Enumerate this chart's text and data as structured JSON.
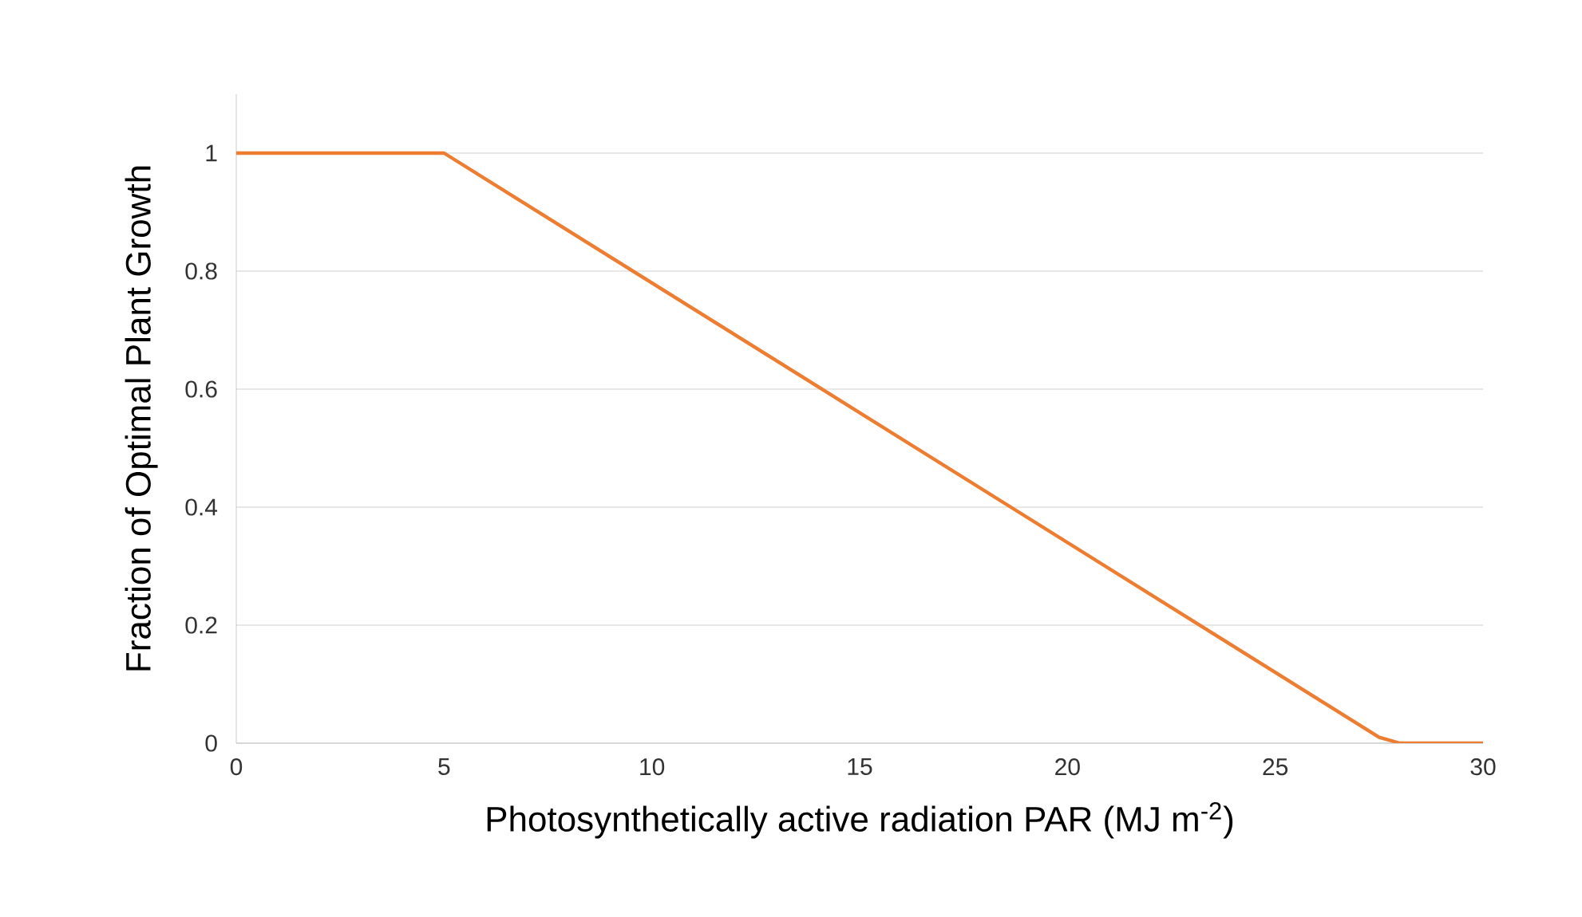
{
  "chart_data": {
    "type": "line",
    "xlabel": "Photosynthetically active radiation PAR (MJ m$^{-2}$)",
    "ylabel": "Fraction of Optimal Plant Growth",
    "x": [
      0,
      5,
      27.5,
      28,
      30
    ],
    "series": [
      {
        "color": "#ed7d31",
        "values": [
          1,
          1,
          0.01,
          0,
          0
        ]
      }
    ],
    "xlim": [
      0,
      30
    ],
    "ylim": [
      0,
      1.1
    ],
    "xticks": [
      0,
      5,
      10,
      15,
      20,
      25,
      30
    ],
    "yticks": [
      0,
      0.2,
      0.4,
      0.6,
      0.8,
      1
    ],
    "grid": "y",
    "marker": "none",
    "line_style": "solid"
  }
}
